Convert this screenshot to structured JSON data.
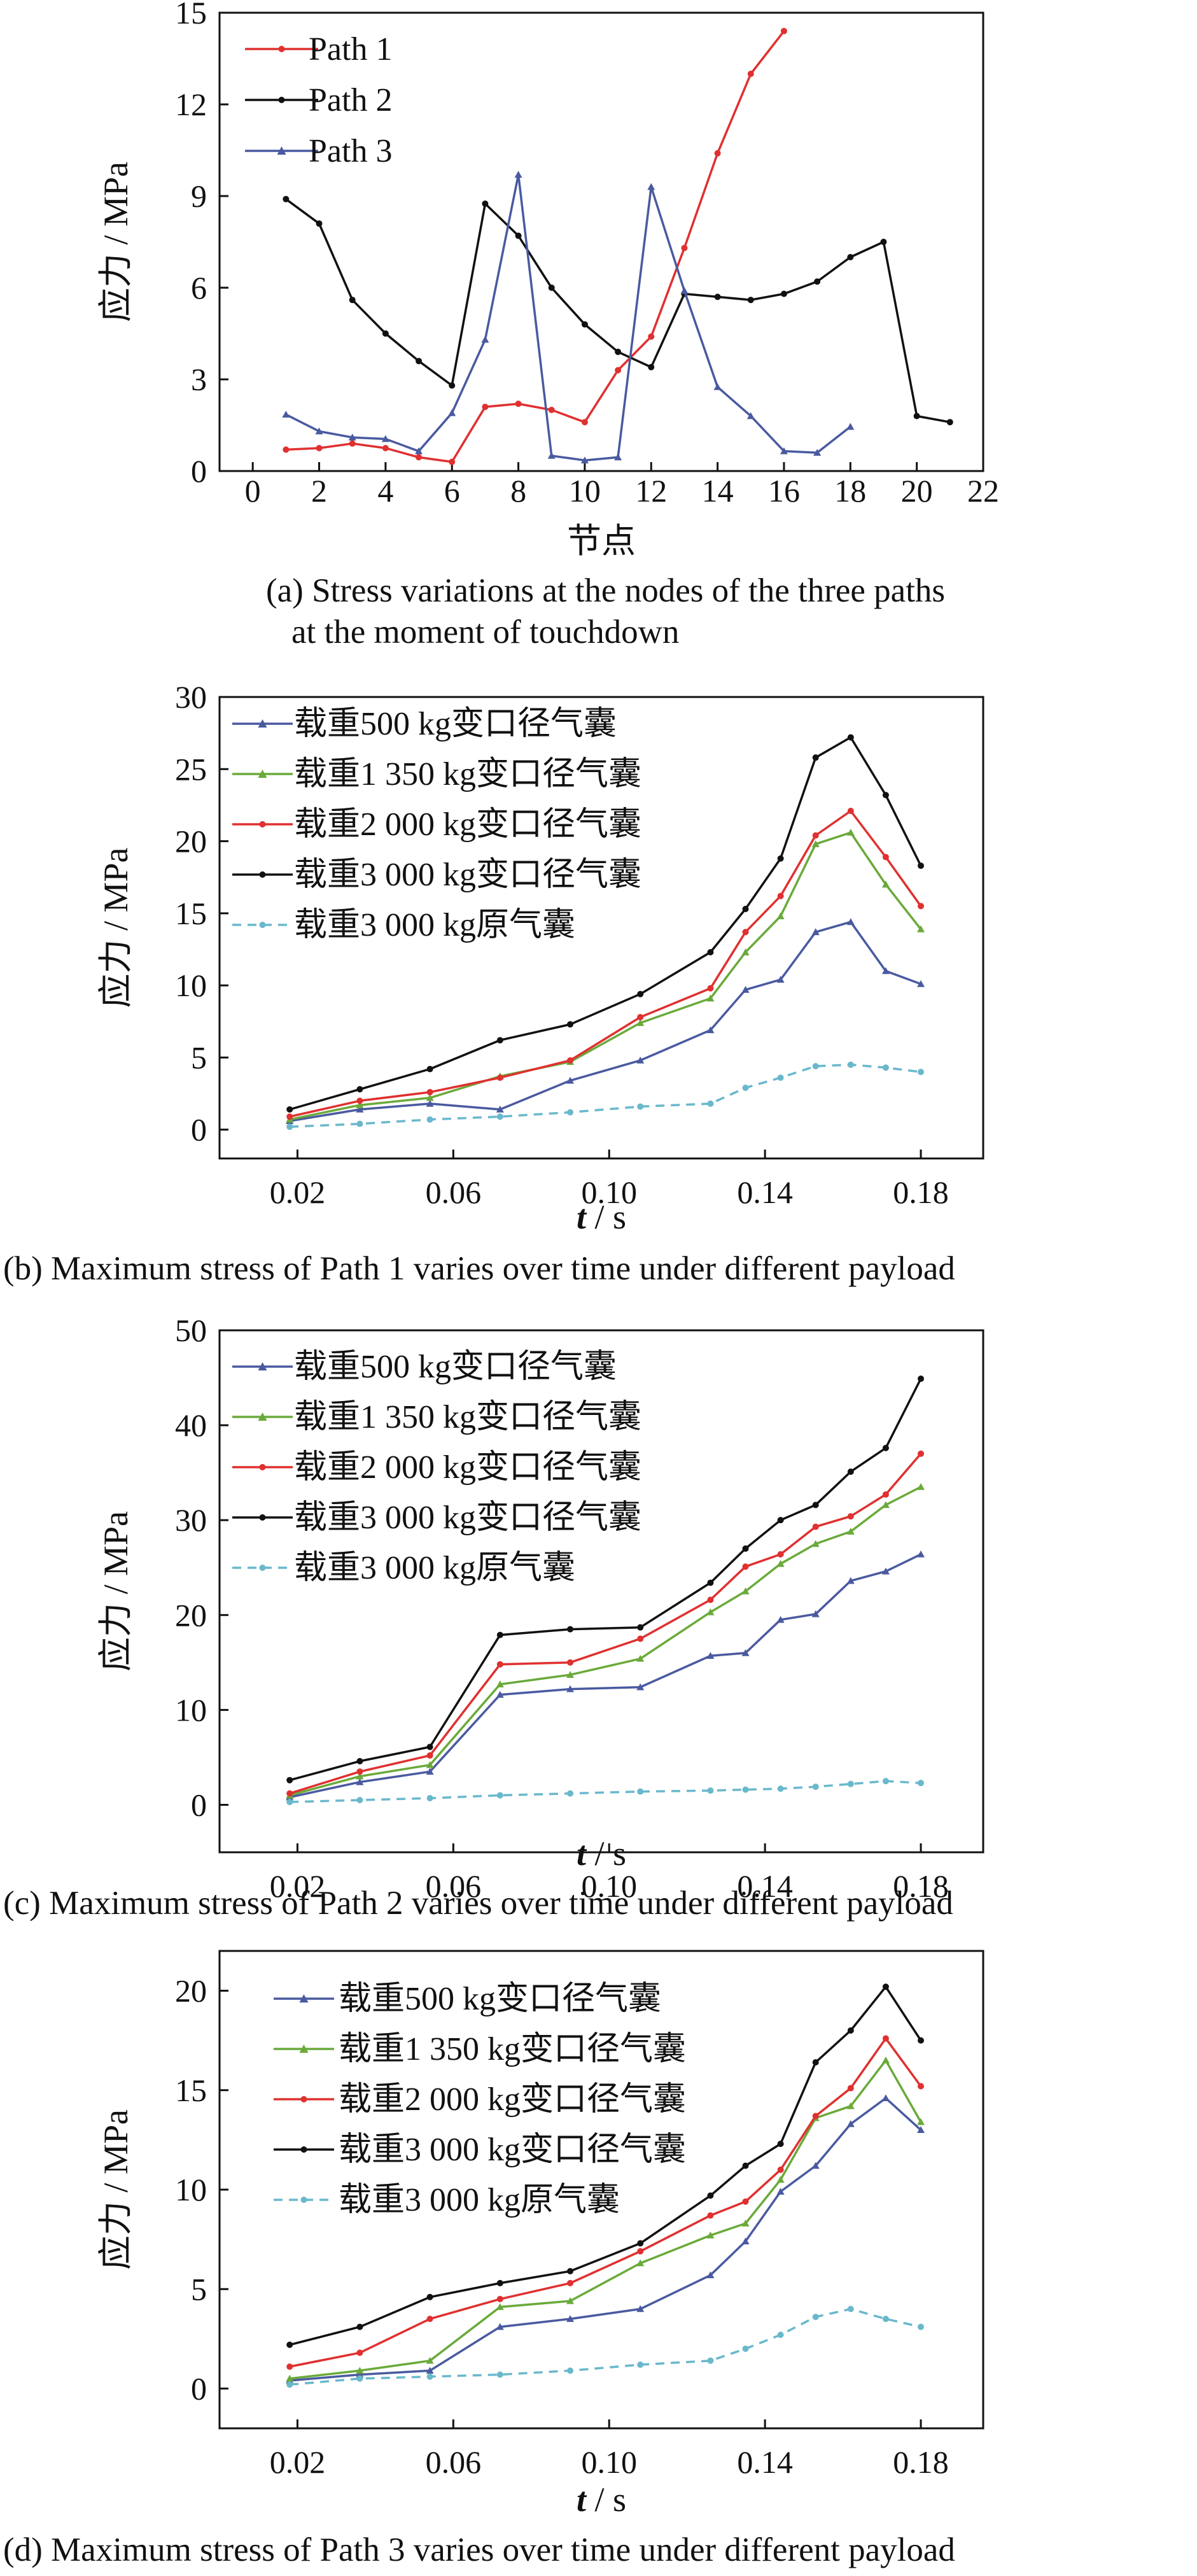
{
  "colors": {
    "red": "#e03030",
    "black": "#111111",
    "blue": "#4a5aa0",
    "green": "#6aaa3a",
    "cyan": "#6ab8cc"
  },
  "chart_data": [
    {
      "type": "line",
      "caption": [
        "(a) Stress variations at the nodes of the three paths",
        "at the moment of touchdown"
      ],
      "xlabel": "节点",
      "ylabel": "应力 / MPa",
      "xlim": [
        -1,
        22
      ],
      "ylim": [
        0,
        15
      ],
      "xticks": [
        0,
        2,
        4,
        6,
        8,
        10,
        12,
        14,
        16,
        18,
        20,
        22
      ],
      "yticks": [
        0,
        3,
        6,
        9,
        12,
        15
      ],
      "legend_position": "top-left",
      "series": [
        {
          "name": "Path 1",
          "color": "#e03030",
          "marker": "dot",
          "dashed": false,
          "x": [
            1,
            2,
            3,
            4,
            5,
            6,
            7,
            8,
            9,
            10,
            11,
            12,
            13,
            14,
            15,
            16
          ],
          "y": [
            0.7,
            0.75,
            0.9,
            0.75,
            0.45,
            0.3,
            2.1,
            2.2,
            2.0,
            1.6,
            3.3,
            4.4,
            7.3,
            10.4,
            13.0,
            14.4
          ]
        },
        {
          "name": "Path 2",
          "color": "#111111",
          "marker": "dot",
          "dashed": false,
          "x": [
            1,
            2,
            3,
            4,
            5,
            6,
            7,
            8,
            9,
            10,
            11,
            12,
            13,
            14,
            15,
            16,
            17,
            18,
            19,
            20,
            21
          ],
          "y": [
            8.9,
            8.1,
            5.6,
            4.5,
            3.6,
            2.8,
            8.75,
            7.7,
            6.0,
            4.8,
            3.9,
            3.4,
            5.8,
            5.7,
            5.6,
            5.8,
            6.2,
            7.0,
            7.5,
            1.8,
            1.6
          ]
        },
        {
          "name": "Path 3",
          "color": "#4a5aa0",
          "marker": "triangle",
          "dashed": false,
          "x": [
            1,
            2,
            3,
            4,
            5,
            6,
            7,
            8,
            9,
            10,
            11,
            12,
            13,
            14,
            15,
            16,
            17,
            18
          ],
          "y": [
            1.85,
            1.3,
            1.1,
            1.05,
            0.65,
            1.9,
            4.3,
            9.7,
            0.5,
            0.35,
            0.45,
            9.3,
            5.9,
            2.75,
            1.8,
            0.65,
            0.6,
            1.45
          ]
        }
      ]
    },
    {
      "type": "line",
      "caption": [
        "(b) Maximum stress of Path 1 varies over time under different payload"
      ],
      "xlabel_italic": "t",
      "xlabel_unit": " / s",
      "ylabel": "应力 / MPa",
      "xlim": [
        0.0,
        0.196
      ],
      "ylim": [
        -2,
        30
      ],
      "xticks": [
        0.02,
        0.06,
        0.1,
        0.14,
        0.18
      ],
      "xtick_labels": [
        "0.02",
        "0.06",
        "0.10",
        "0.14",
        "0.18"
      ],
      "yticks": [
        0,
        5,
        10,
        15,
        20,
        25,
        30
      ],
      "legend_position": "top-left",
      "x": [
        0.018,
        0.036,
        0.054,
        0.072,
        0.09,
        0.108,
        0.126,
        0.135,
        0.144,
        0.153,
        0.162,
        0.171,
        0.18
      ],
      "series": [
        {
          "name": "载重500 kg变口径气囊",
          "color": "#4a5aa0",
          "marker": "triangle",
          "dashed": false,
          "y": [
            0.6,
            1.4,
            1.8,
            1.4,
            3.4,
            4.8,
            6.9,
            9.7,
            10.4,
            13.7,
            14.4,
            11.0,
            10.1
          ]
        },
        {
          "name": "载重1 350 kg变口径气囊",
          "color": "#6aaa3a",
          "marker": "triangle",
          "dashed": false,
          "y": [
            0.7,
            1.7,
            2.2,
            3.7,
            4.7,
            7.4,
            9.1,
            12.3,
            14.8,
            19.8,
            20.6,
            17.0,
            13.9
          ]
        },
        {
          "name": "载重2 000 kg变口径气囊",
          "color": "#e03030",
          "marker": "dot",
          "dashed": false,
          "y": [
            0.9,
            2.0,
            2.6,
            3.6,
            4.8,
            7.8,
            9.8,
            13.7,
            16.2,
            20.4,
            22.1,
            18.9,
            15.5
          ]
        },
        {
          "name": "载重3 000 kg变口径气囊",
          "color": "#111111",
          "marker": "dot",
          "dashed": false,
          "y": [
            1.4,
            2.8,
            4.2,
            6.2,
            7.3,
            9.4,
            12.3,
            15.3,
            18.8,
            25.8,
            27.2,
            23.2,
            18.3
          ]
        },
        {
          "name": "载重3 000 kg原气囊",
          "color": "#6ab8cc",
          "marker": "dot",
          "dashed": true,
          "y": [
            0.2,
            0.4,
            0.7,
            0.9,
            1.2,
            1.6,
            1.8,
            2.9,
            3.6,
            4.4,
            4.5,
            4.3,
            4.0
          ]
        }
      ]
    },
    {
      "type": "line",
      "caption": [
        "(c) Maximum stress of Path 2 varies over time under different payload"
      ],
      "xlabel_italic": "t",
      "xlabel_unit": " / s",
      "ylabel": "应力 / MPa",
      "xlim": [
        0.0,
        0.196
      ],
      "ylim": [
        -5,
        50
      ],
      "xticks": [
        0.02,
        0.06,
        0.1,
        0.14,
        0.18
      ],
      "xtick_labels": [
        "0.02",
        "0.06",
        "0.10",
        "0.14",
        "0.18"
      ],
      "yticks": [
        0,
        10,
        20,
        30,
        40,
        50
      ],
      "legend_position": "top-left",
      "x": [
        0.018,
        0.036,
        0.054,
        0.072,
        0.09,
        0.108,
        0.126,
        0.135,
        0.144,
        0.153,
        0.162,
        0.171,
        0.18
      ],
      "series": [
        {
          "name": "载重500 kg变口径气囊",
          "color": "#4a5aa0",
          "marker": "triangle",
          "dashed": false,
          "y": [
            0.8,
            2.4,
            3.5,
            11.6,
            12.2,
            12.4,
            15.7,
            16.0,
            19.5,
            20.1,
            23.6,
            24.6,
            26.4
          ]
        },
        {
          "name": "载重1 350 kg变口径气囊",
          "color": "#6aaa3a",
          "marker": "triangle",
          "dashed": false,
          "y": [
            1.0,
            3.0,
            4.2,
            12.7,
            13.7,
            15.4,
            20.3,
            22.5,
            25.4,
            27.5,
            28.8,
            31.6,
            33.5
          ]
        },
        {
          "name": "载重2 000 kg变口径气囊",
          "color": "#e03030",
          "marker": "dot",
          "dashed": false,
          "y": [
            1.2,
            3.5,
            5.2,
            14.8,
            15.0,
            17.5,
            21.6,
            25.1,
            26.4,
            29.3,
            30.4,
            32.7,
            37.0
          ]
        },
        {
          "name": "载重3 000 kg变口径气囊",
          "color": "#111111",
          "marker": "dot",
          "dashed": false,
          "y": [
            2.6,
            4.6,
            6.1,
            17.9,
            18.5,
            18.7,
            23.4,
            27.0,
            30.0,
            31.6,
            35.1,
            37.6,
            44.9
          ]
        },
        {
          "name": "载重3 000 kg原气囊",
          "color": "#6ab8cc",
          "marker": "dot",
          "dashed": true,
          "y": [
            0.3,
            0.5,
            0.7,
            1.0,
            1.2,
            1.4,
            1.5,
            1.6,
            1.7,
            1.9,
            2.2,
            2.5,
            2.3
          ]
        }
      ]
    },
    {
      "type": "line",
      "caption": [
        "(d) Maximum stress of Path 3 varies over time under different payload"
      ],
      "xlabel_italic": "t",
      "xlabel_unit": " / s",
      "ylabel": "应力 / MPa",
      "xlim": [
        0.0,
        0.196
      ],
      "ylim": [
        -2,
        22
      ],
      "xticks": [
        0.02,
        0.06,
        0.1,
        0.14,
        0.18
      ],
      "xtick_labels": [
        "0.02",
        "0.06",
        "0.10",
        "0.14",
        "0.18"
      ],
      "yticks": [
        0,
        5,
        10,
        15,
        20
      ],
      "legend_position": "top-left",
      "x": [
        0.018,
        0.036,
        0.054,
        0.072,
        0.09,
        0.108,
        0.126,
        0.135,
        0.144,
        0.153,
        0.162,
        0.171,
        0.18
      ],
      "series": [
        {
          "name": "载重500 kg变口径气囊",
          "color": "#4a5aa0",
          "marker": "triangle",
          "dashed": false,
          "y": [
            0.4,
            0.7,
            0.9,
            3.1,
            3.5,
            4.0,
            5.7,
            7.4,
            9.9,
            11.2,
            13.3,
            14.6,
            13.0
          ]
        },
        {
          "name": "载重1 350 kg变口径气囊",
          "color": "#6aaa3a",
          "marker": "triangle",
          "dashed": false,
          "y": [
            0.5,
            0.9,
            1.4,
            4.1,
            4.4,
            6.3,
            7.7,
            8.3,
            10.5,
            13.6,
            14.2,
            16.5,
            13.4
          ]
        },
        {
          "name": "载重2 000 kg变口径气囊",
          "color": "#e03030",
          "marker": "dot",
          "dashed": false,
          "y": [
            1.1,
            1.8,
            3.5,
            4.5,
            5.3,
            6.9,
            8.7,
            9.4,
            11.0,
            13.7,
            15.1,
            17.6,
            15.2
          ]
        },
        {
          "name": "载重3 000 kg变口径气囊",
          "color": "#111111",
          "marker": "dot",
          "dashed": false,
          "y": [
            2.2,
            3.1,
            4.6,
            5.3,
            5.9,
            7.3,
            9.7,
            11.2,
            12.3,
            16.4,
            18.0,
            20.2,
            17.5
          ]
        },
        {
          "name": "载重3 000 kg原气囊",
          "color": "#6ab8cc",
          "marker": "dot",
          "dashed": true,
          "y": [
            0.2,
            0.5,
            0.6,
            0.7,
            0.9,
            1.2,
            1.4,
            2.0,
            2.7,
            3.6,
            4.0,
            3.5,
            3.1
          ]
        }
      ]
    }
  ]
}
